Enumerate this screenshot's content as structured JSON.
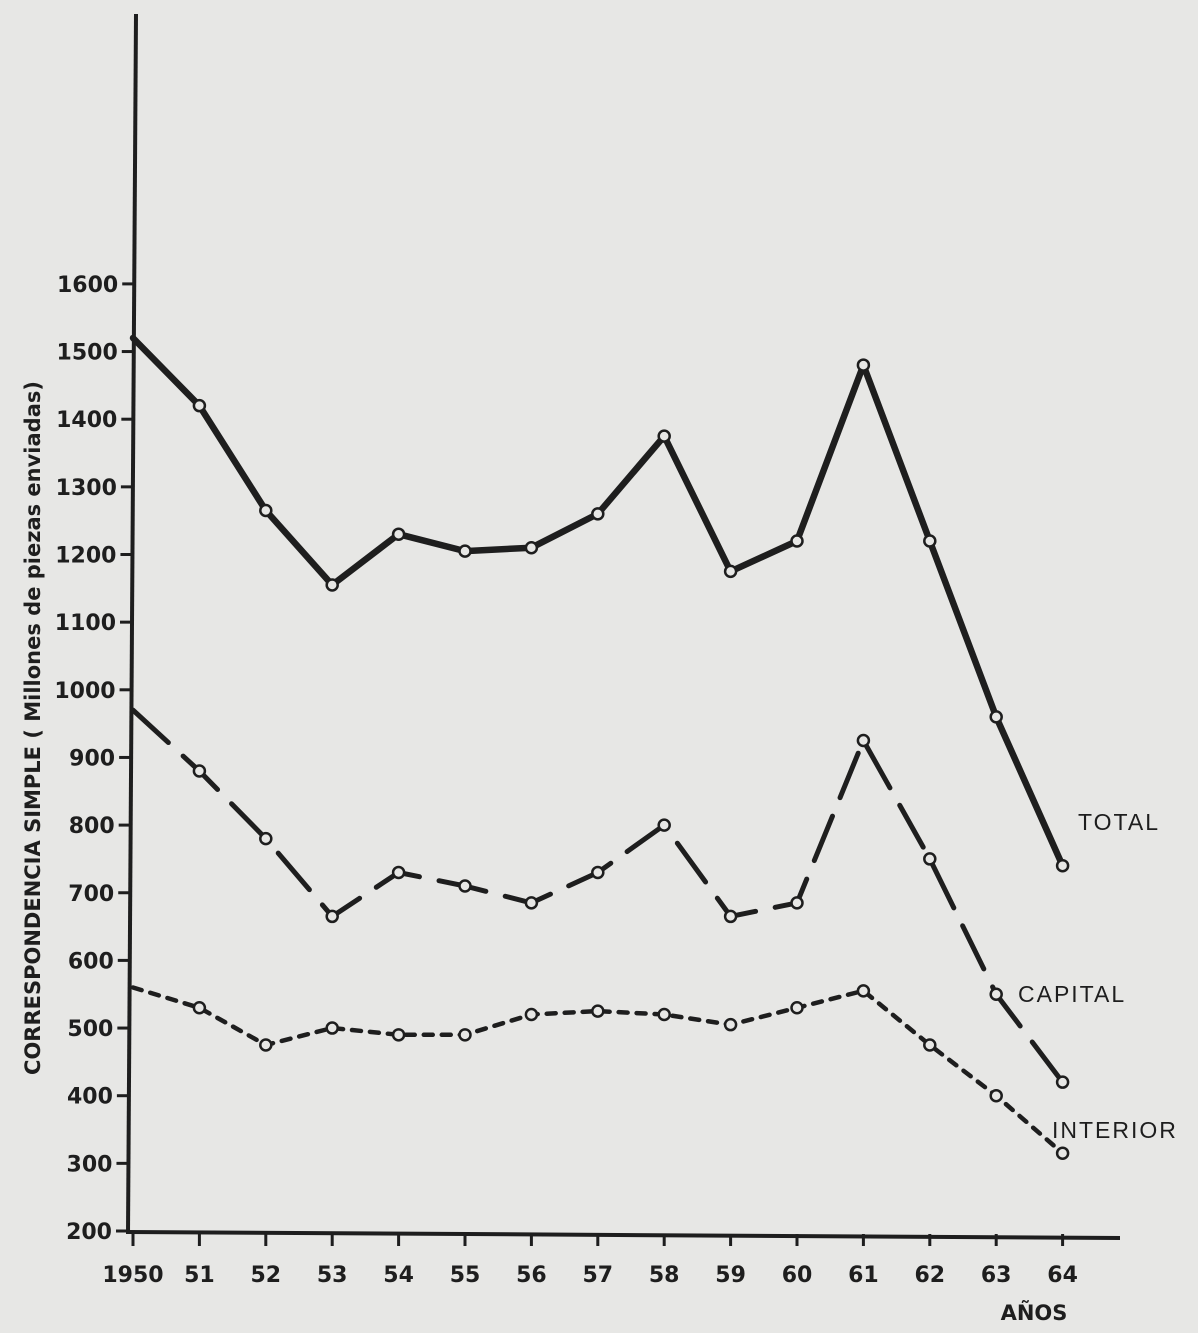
{
  "chart_data": {
    "type": "line",
    "title": "",
    "xlabel": "AÑOS",
    "ylabel": "CORRESPONDENCIA SIMPLE ( Millones de piezas enviadas)",
    "categories": [
      "1950",
      "51",
      "52",
      "53",
      "54",
      "55",
      "56",
      "57",
      "58",
      "59",
      "60",
      "61",
      "62",
      "63",
      "64"
    ],
    "ylim": [
      200,
      1600
    ],
    "yticks": [
      200,
      300,
      400,
      500,
      600,
      700,
      800,
      900,
      1000,
      1100,
      1200,
      1300,
      1400,
      1500,
      1600
    ],
    "ytick_labels": [
      "200",
      "300",
      "400",
      "500",
      "600",
      "700",
      "800",
      "900",
      "1000",
      "1100",
      "1200",
      "1300",
      "1400",
      "1500",
      "1600"
    ],
    "grid": false,
    "legend": "none",
    "series": [
      {
        "name": "TOTAL",
        "style": "solid",
        "values": [
          1520,
          1420,
          1265,
          1155,
          1230,
          1205,
          1210,
          1260,
          1375,
          1175,
          1220,
          1480,
          1220,
          960,
          740
        ]
      },
      {
        "name": "CAPITAL",
        "style": "dashed",
        "values": [
          970,
          880,
          780,
          665,
          730,
          710,
          685,
          730,
          800,
          665,
          685,
          925,
          750,
          550,
          420
        ]
      },
      {
        "name": "INTERIOR",
        "style": "dotted",
        "values": [
          560,
          530,
          475,
          500,
          490,
          490,
          520,
          525,
          520,
          505,
          530,
          555,
          475,
          400,
          315
        ]
      }
    ],
    "colors": {
      "background": "#e7e7e5",
      "ink": "#1e1e1e"
    }
  }
}
